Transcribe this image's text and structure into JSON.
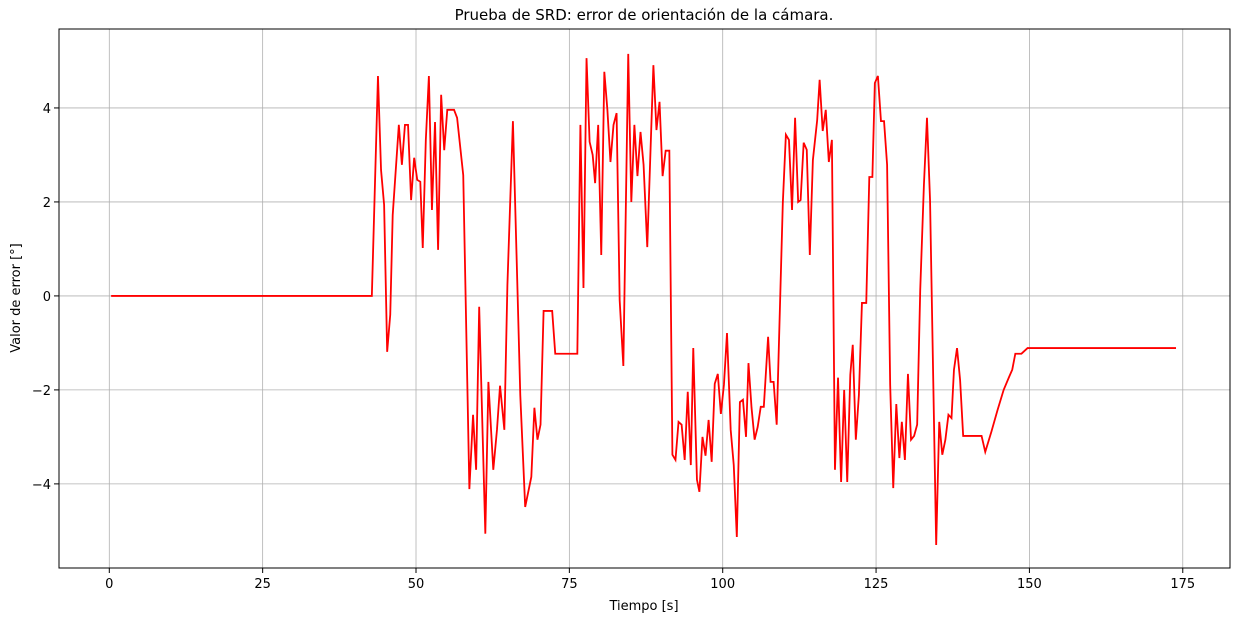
{
  "chart_data": {
    "type": "line",
    "title": "Prueba de SRD: error de orientación de la cámara.",
    "x_label": "Tiempo [s]",
    "y_label": "Valor de error [°]",
    "grid": true,
    "xlim": [
      -8.2,
      182.7
    ],
    "ylim": [
      -5.79,
      5.68
    ],
    "xticks": [
      0,
      25,
      50,
      75,
      100,
      125,
      150,
      175
    ],
    "yticks": [
      {
        "value": -4,
        "label": "−4"
      },
      {
        "value": -2,
        "label": "−2"
      },
      0,
      2,
      4
    ],
    "x": [
      0.3,
      42.8,
      43.8,
      44.3,
      44.8,
      45.3,
      45.8,
      46.2,
      47.2,
      47.7,
      48.2,
      48.7,
      49.2,
      49.7,
      50.2,
      50.7,
      51.1,
      51.6,
      52.1,
      52.6,
      53.1,
      53.6,
      54.1,
      54.6,
      55.1,
      56.2,
      56.7,
      57.7,
      58.7,
      59.3,
      59.8,
      60.3,
      61.3,
      61.8,
      62.6,
      63.2,
      63.7,
      64.4,
      64.9,
      65.8,
      66.5,
      67.0,
      67.8,
      68.8,
      69.3,
      69.8,
      70.3,
      70.8,
      72.2,
      72.7,
      76.3,
      76.8,
      77.3,
      77.8,
      78.3,
      78.8,
      79.2,
      79.7,
      80.2,
      80.7,
      81.2,
      81.7,
      82.2,
      82.7,
      83.2,
      83.8,
      84.6,
      85.1,
      85.6,
      86.1,
      86.6,
      87.1,
      87.7,
      88.7,
      89.2,
      89.7,
      90.2,
      90.7,
      91.3,
      91.8,
      92.3,
      92.8,
      93.3,
      93.8,
      94.3,
      94.8,
      95.2,
      95.8,
      96.2,
      96.7,
      97.2,
      97.7,
      98.2,
      98.7,
      99.2,
      99.7,
      100.2,
      100.7,
      101.3,
      101.8,
      102.3,
      102.8,
      103.3,
      103.8,
      104.2,
      104.7,
      105.2,
      105.7,
      106.2,
      106.7,
      107.4,
      107.8,
      108.3,
      108.8,
      109.8,
      110.3,
      110.8,
      111.3,
      111.8,
      112.3,
      112.7,
      113.2,
      113.7,
      114.2,
      114.7,
      115.4,
      115.8,
      116.3,
      116.8,
      117.3,
      117.8,
      118.3,
      118.8,
      119.3,
      119.8,
      120.3,
      120.8,
      121.2,
      121.7,
      122.2,
      122.7,
      123.4,
      123.9,
      124.4,
      124.8,
      125.3,
      125.8,
      126.3,
      126.8,
      127.3,
      127.8,
      128.3,
      128.8,
      129.2,
      129.7,
      130.2,
      130.7,
      131.2,
      131.7,
      132.2,
      132.8,
      133.3,
      133.8,
      134.8,
      135.3,
      135.8,
      136.3,
      136.8,
      137.3,
      137.7,
      138.2,
      138.7,
      139.2,
      142.2,
      142.8,
      143.8,
      144.8,
      145.8,
      146.7,
      147.2,
      147.7,
      148.7,
      149.7,
      173.9
    ],
    "series": [
      {
        "name": "error",
        "color": "#ff0000",
        "values": [
          0,
          0,
          4.68,
          2.68,
          1.94,
          -1.19,
          -0.4,
          1.72,
          3.64,
          2.79,
          3.64,
          3.64,
          2.04,
          2.94,
          2.47,
          2.43,
          1.02,
          3.32,
          4.68,
          1.83,
          3.7,
          0.98,
          4.28,
          3.1,
          3.96,
          3.96,
          3.79,
          2.57,
          -4.11,
          -2.53,
          -3.7,
          -0.23,
          -5.06,
          -1.83,
          -3.7,
          -2.85,
          -1.91,
          -2.85,
          0.23,
          3.72,
          0.34,
          -2.11,
          -4.49,
          -3.85,
          -2.38,
          -3.06,
          -2.74,
          -0.32,
          -0.32,
          -1.23,
          -1.23,
          3.64,
          0.17,
          5.06,
          3.28,
          3.0,
          2.4,
          3.64,
          0.87,
          4.77,
          3.96,
          2.85,
          3.64,
          3.89,
          -0.09,
          -1.49,
          5.15,
          2.0,
          3.64,
          2.55,
          3.49,
          2.79,
          1.04,
          4.91,
          3.53,
          4.13,
          2.55,
          3.09,
          3.09,
          -3.38,
          -3.49,
          -2.68,
          -2.74,
          -3.49,
          -2.04,
          -3.6,
          -1.11,
          -3.91,
          -4.17,
          -3.0,
          -3.4,
          -2.64,
          -3.53,
          -1.87,
          -1.66,
          -2.51,
          -1.89,
          -0.79,
          -2.85,
          -3.6,
          -5.13,
          -2.26,
          -2.21,
          -3.0,
          -1.43,
          -2.38,
          -3.06,
          -2.79,
          -2.36,
          -2.36,
          -0.87,
          -1.83,
          -1.83,
          -2.74,
          1.98,
          3.43,
          3.32,
          1.83,
          3.79,
          2.0,
          2.04,
          3.26,
          3.11,
          0.87,
          2.89,
          3.74,
          4.6,
          3.51,
          3.96,
          2.85,
          3.32,
          -3.7,
          -1.74,
          -3.96,
          -2.0,
          -3.96,
          -1.68,
          -1.04,
          -3.06,
          -2.11,
          -0.15,
          -0.15,
          2.53,
          2.53,
          4.53,
          4.68,
          3.72,
          3.72,
          2.79,
          -1.89,
          -4.09,
          -2.3,
          -3.45,
          -2.68,
          -3.49,
          -1.66,
          -3.06,
          -2.98,
          -2.74,
          0.13,
          2.36,
          3.79,
          2.04,
          -5.3,
          -2.68,
          -3.38,
          -3.06,
          -2.53,
          -2.6,
          -1.57,
          -1.11,
          -1.79,
          -2.98,
          -2.98,
          -3.32,
          -2.89,
          -2.43,
          -2.0,
          -1.72,
          -1.57,
          -1.23,
          -1.23,
          -1.11,
          -1.11
        ]
      }
    ]
  }
}
